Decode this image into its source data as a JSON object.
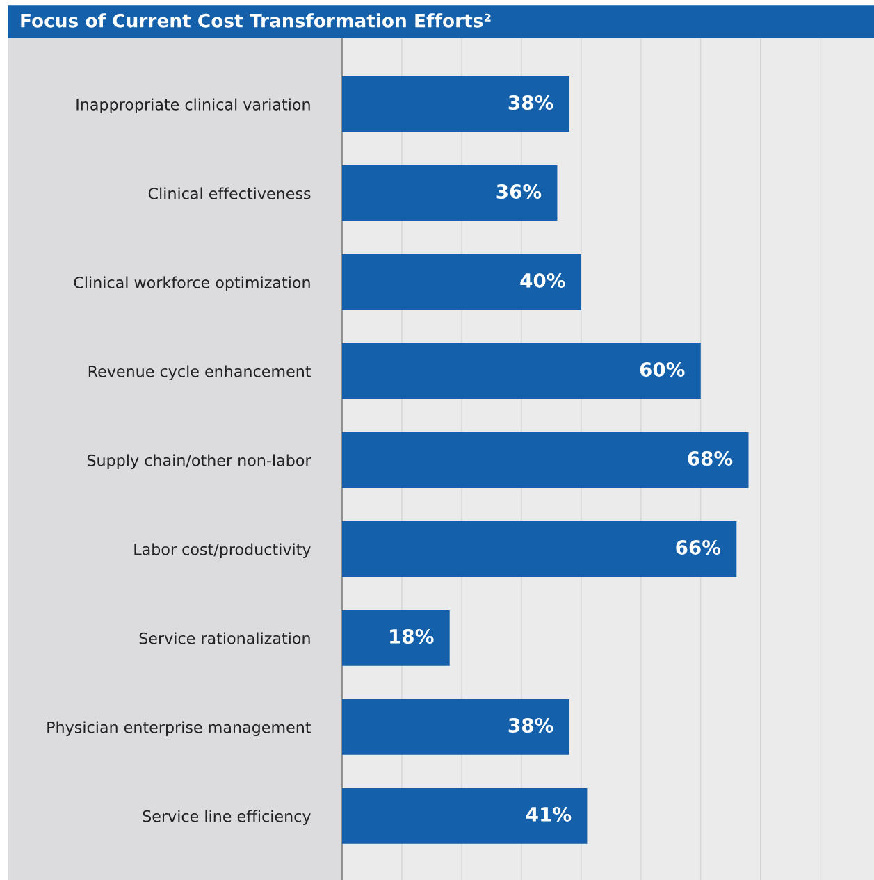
{
  "chart_data": {
    "type": "bar",
    "orientation": "horizontal",
    "title": "Focus of Current Cost Transformation Efforts²",
    "categories": [
      "Inappropriate clinical variation",
      "Clinical effectiveness",
      "Clinical workforce optimization",
      "Revenue cycle enhancement",
      "Supply chain/other non-labor",
      "Labor cost/productivity",
      "Service rationalization",
      "Physician enterprise management",
      "Service line efficiency"
    ],
    "values": [
      38,
      36,
      40,
      60,
      68,
      66,
      18,
      38,
      41
    ],
    "value_labels": [
      "38%",
      "36%",
      "40%",
      "60%",
      "68%",
      "66%",
      "18%",
      "38%",
      "41%"
    ],
    "color": "#1460aa",
    "xlim": [
      0,
      89
    ],
    "xticks": [
      {
        "value": 0,
        "label": null
      },
      {
        "value": 10,
        "label": null
      },
      {
        "value": 20,
        "label": null
      },
      {
        "value": 30,
        "label": null
      },
      {
        "value": 40,
        "label": null
      },
      {
        "value": 50,
        "label": null
      },
      {
        "value": 60,
        "label": null
      },
      {
        "value": 70,
        "label": null
      },
      {
        "value": 80,
        "label": null
      }
    ],
    "tick_labels": "y",
    "grid": "x"
  }
}
